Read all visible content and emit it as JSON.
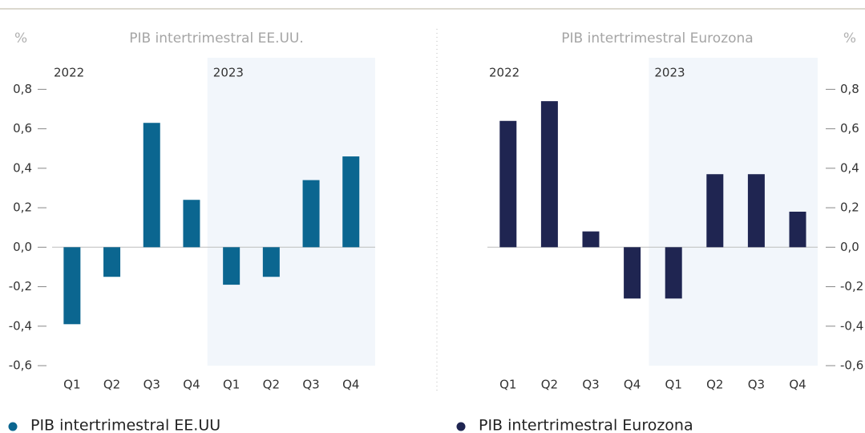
{
  "chart_data": [
    {
      "type": "bar",
      "title": "PIB intertrimestral EE.UU.",
      "unit": "%",
      "categories": [
        "Q1",
        "Q2",
        "Q3",
        "Q4",
        "Q1",
        "Q2",
        "Q3",
        "Q4"
      ],
      "groups": [
        "2022",
        "2023"
      ],
      "series": [
        {
          "name": "PIB intertrimestral EE.UU",
          "color": "#0b6690",
          "values": [
            -0.39,
            -0.15,
            0.63,
            0.24,
            -0.19,
            -0.15,
            0.34,
            0.46
          ]
        }
      ],
      "ylim": [
        -0.6,
        0.96
      ],
      "yticks": [
        {
          "value": -0.6,
          "label": "-0,6"
        },
        {
          "value": -0.4,
          "label": "-0,4"
        },
        {
          "value": -0.2,
          "label": "-0,2"
        },
        {
          "value": 0,
          "label": "0,0"
        },
        {
          "value": 0.2,
          "label": "0,2"
        },
        {
          "value": 0.4,
          "label": "0,4"
        },
        {
          "value": 0.6,
          "label": "0,6"
        },
        {
          "value": 0.8,
          "label": "0,8"
        }
      ],
      "axis_side": "left",
      "grid": false
    },
    {
      "type": "bar",
      "title": "PIB intertrimestral Eurozona",
      "unit": "%",
      "categories": [
        "Q1",
        "Q2",
        "Q3",
        "Q4",
        "Q1",
        "Q2",
        "Q3",
        "Q4"
      ],
      "groups": [
        "2022",
        "2023"
      ],
      "series": [
        {
          "name": "PIB intertrimestral Eurozona",
          "color": "#1f2551",
          "values": [
            0.64,
            0.74,
            0.08,
            -0.26,
            -0.26,
            0.37,
            0.37,
            0.18
          ]
        }
      ],
      "ylim": [
        -0.6,
        0.96
      ],
      "yticks": [
        {
          "value": -0.6,
          "label": "-0,6"
        },
        {
          "value": -0.4,
          "label": "-0,4"
        },
        {
          "value": -0.2,
          "label": "-0,2"
        },
        {
          "value": 0,
          "label": "0,0"
        },
        {
          "value": 0.2,
          "label": "0,2"
        },
        {
          "value": 0.4,
          "label": "0,4"
        },
        {
          "value": 0.6,
          "label": "0,6"
        },
        {
          "value": 0.8,
          "label": "0,8"
        }
      ],
      "axis_side": "right",
      "grid": false
    }
  ]
}
